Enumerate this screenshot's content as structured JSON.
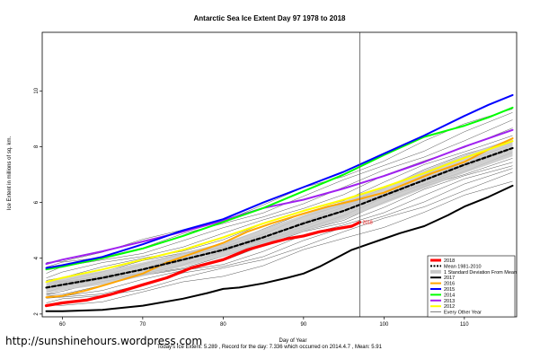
{
  "chart_data": {
    "type": "line",
    "title": "Antarctic Sea Ice Extent Day 97 1978 to 2018",
    "xlabel": "Day of Year",
    "ylabel": "Ice Extent in millions of sq. km.",
    "xlim": [
      57.5,
      116.5
    ],
    "ylim": [
      1.9,
      12.1
    ],
    "x_ticks": [
      60,
      70,
      80,
      90,
      100,
      110
    ],
    "y_ticks": [
      2,
      4,
      6,
      8,
      10
    ],
    "current_day": 97,
    "current_day_label": "2018",
    "grid": false,
    "legend_position": "bottom-right",
    "footer": "Today's Ice Extent: 5.289  ,  Record for the day: 7.336 which occurred on 2014.4.7  ,  Mean: 5.91",
    "credit": "http://sunshinehours.wordpress.com",
    "legend": [
      {
        "label": "2018",
        "color": "#ff0000",
        "kind": "line",
        "width": 3
      },
      {
        "label": "Mean 1981-2010",
        "color": "#000000",
        "kind": "dashed",
        "width": 2
      },
      {
        "label": "1 Standard Deviation From Mean",
        "color": "#c8c8c8",
        "kind": "band",
        "width": 4
      },
      {
        "label": "2017",
        "color": "#000000",
        "kind": "line",
        "width": 2
      },
      {
        "label": "2016",
        "color": "#ffa500",
        "kind": "line",
        "width": 2
      },
      {
        "label": "2015",
        "color": "#0000ff",
        "kind": "line",
        "width": 2
      },
      {
        "label": "2014",
        "color": "#00ff00",
        "kind": "line",
        "width": 2
      },
      {
        "label": "2013",
        "color": "#a020f0",
        "kind": "line",
        "width": 2
      },
      {
        "label": "2012",
        "color": "#ffff00",
        "kind": "line",
        "width": 2
      },
      {
        "label": "Every Other Year",
        "color": "#000000",
        "kind": "thin",
        "width": 0.5
      }
    ],
    "std_band": {
      "x": [
        58,
        60,
        65,
        70,
        75,
        80,
        85,
        90,
        95,
        100,
        105,
        110,
        116
      ],
      "lower": [
        2.75,
        2.85,
        3.05,
        3.35,
        3.7,
        4.05,
        4.5,
        4.95,
        5.4,
        5.95,
        6.5,
        7.05,
        7.65
      ],
      "upper": [
        3.2,
        3.3,
        3.55,
        3.85,
        4.2,
        4.55,
        5.05,
        5.55,
        6.05,
        6.55,
        7.15,
        7.7,
        8.3
      ]
    },
    "series": [
      {
        "name": "Mean 1981-2010",
        "color": "#000000",
        "style": "dashed",
        "width": 2.2,
        "x": [
          58,
          60,
          65,
          70,
          75,
          80,
          85,
          90,
          95,
          100,
          105,
          110,
          116
        ],
        "values": [
          2.95,
          3.05,
          3.3,
          3.6,
          3.95,
          4.3,
          4.75,
          5.25,
          5.7,
          6.25,
          6.8,
          7.35,
          7.95
        ]
      },
      {
        "name": "2017",
        "color": "#000000",
        "style": "solid",
        "width": 2,
        "x": [
          58,
          60,
          65,
          70,
          75,
          78,
          80,
          82,
          85,
          88,
          90,
          92,
          94,
          96,
          98,
          100,
          102,
          105,
          108,
          110,
          113,
          116
        ],
        "values": [
          2.1,
          2.1,
          2.15,
          2.3,
          2.55,
          2.75,
          2.9,
          2.95,
          3.1,
          3.3,
          3.45,
          3.7,
          4.0,
          4.3,
          4.5,
          4.7,
          4.9,
          5.15,
          5.55,
          5.85,
          6.2,
          6.6
        ]
      },
      {
        "name": "2016",
        "color": "#ffa500",
        "style": "solid",
        "width": 2,
        "x": [
          58,
          60,
          63,
          66,
          70,
          73,
          76,
          80,
          83,
          86,
          90,
          93,
          96,
          100,
          103,
          106,
          110,
          113,
          116
        ],
        "values": [
          2.6,
          2.65,
          2.85,
          3.1,
          3.45,
          3.85,
          4.15,
          4.55,
          4.95,
          5.25,
          5.6,
          5.85,
          6.05,
          6.35,
          6.7,
          7.05,
          7.45,
          7.9,
          8.3
        ]
      },
      {
        "name": "2015",
        "color": "#0000ff",
        "style": "solid",
        "width": 2,
        "x": [
          58,
          60,
          65,
          70,
          75,
          80,
          85,
          90,
          95,
          100,
          105,
          110,
          113,
          116
        ],
        "values": [
          3.65,
          3.75,
          4.05,
          4.5,
          5.0,
          5.4,
          6.0,
          6.55,
          7.1,
          7.75,
          8.4,
          9.1,
          9.5,
          9.85
        ]
      },
      {
        "name": "2014",
        "color": "#00ff00",
        "style": "solid",
        "width": 2,
        "x": [
          58,
          60,
          65,
          70,
          75,
          80,
          85,
          90,
          95,
          100,
          105,
          110,
          113,
          116
        ],
        "values": [
          3.6,
          3.7,
          4.0,
          4.35,
          4.8,
          5.3,
          5.8,
          6.4,
          7.0,
          7.7,
          8.35,
          8.75,
          9.05,
          9.4
        ]
      },
      {
        "name": "2013",
        "color": "#a020f0",
        "style": "solid",
        "width": 2,
        "x": [
          58,
          60,
          65,
          70,
          75,
          80,
          85,
          90,
          95,
          100,
          105,
          110,
          116
        ],
        "values": [
          3.8,
          3.95,
          4.25,
          4.6,
          4.95,
          5.35,
          5.8,
          6.1,
          6.5,
          6.95,
          7.45,
          8.0,
          8.6
        ]
      },
      {
        "name": "2012",
        "color": "#ffff00",
        "style": "solid",
        "width": 2,
        "x": [
          58,
          60,
          65,
          70,
          75,
          80,
          85,
          90,
          95,
          100,
          105,
          110,
          116
        ],
        "values": [
          3.15,
          3.3,
          3.6,
          3.95,
          4.3,
          4.75,
          5.25,
          5.7,
          6.1,
          6.55,
          7.05,
          7.6,
          8.2
        ]
      },
      {
        "name": "2018",
        "color": "#ff0000",
        "style": "solid",
        "width": 3.2,
        "x": [
          58,
          60,
          63,
          66,
          70,
          73,
          76,
          80,
          83,
          86,
          88,
          90,
          92,
          94,
          96,
          97
        ],
        "values": [
          2.3,
          2.4,
          2.5,
          2.7,
          3.05,
          3.3,
          3.65,
          3.95,
          4.3,
          4.55,
          4.7,
          4.8,
          4.95,
          5.05,
          5.15,
          5.29
        ]
      }
    ]
  }
}
